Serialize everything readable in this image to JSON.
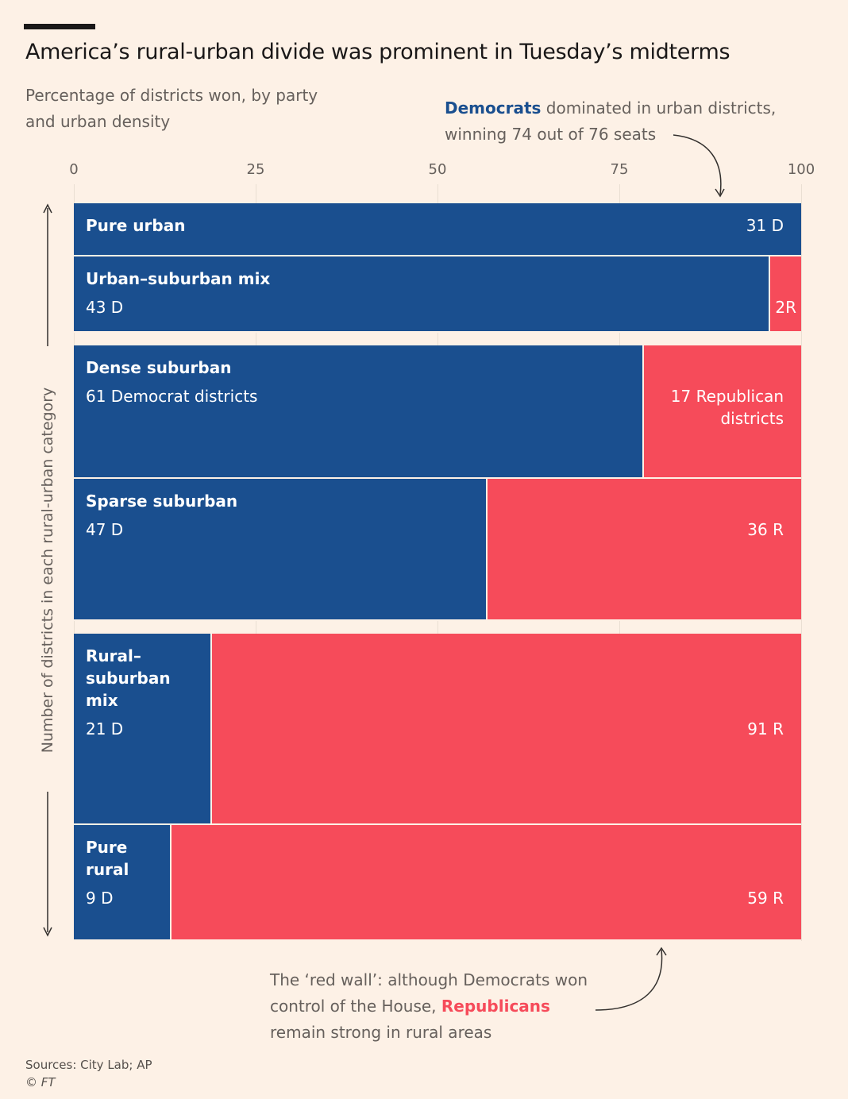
{
  "chart_data": {
    "type": "mekko",
    "title": "America’s rural-urban divide was prominent in Tuesday’s midterms",
    "subtitle": "Percentage of districts won, by party and urban density",
    "y_label": "Number of districts in each rural-urban category",
    "categories": [
      "Pure urban",
      "Urban–suburban mix",
      "Dense suburban",
      "Sparse suburban",
      "Rural–suburban mix",
      "Pure rural"
    ],
    "series": [
      {
        "name": "Democrats",
        "color": "#1a4f8f",
        "values": [
          31,
          43,
          61,
          47,
          21,
          9
        ],
        "value_labels": [
          "31 D",
          "43 D",
          "61 Democrat districts",
          "47 D",
          "21 D",
          "9 D"
        ]
      },
      {
        "name": "Republicans",
        "color": "#f64b5a",
        "values": [
          0,
          2,
          17,
          36,
          91,
          59
        ],
        "value_labels": [
          null,
          "2R",
          "17 Republican districts",
          "36 R",
          "91 R",
          "59 R"
        ]
      }
    ],
    "xlim": [
      0,
      100
    ],
    "xticks": [
      0,
      25,
      50,
      75,
      100
    ],
    "grid": true,
    "annotations": [
      {
        "highlight": "Democrats",
        "text": "dominated in urban districts, winning 74 out of 76 seats"
      },
      {
        "text_1": "The ‘red wall’: although Democrats won control of the House,",
        "highlight": "Republicans",
        "text_2": "remain strong in rural areas"
      }
    ],
    "source": "Sources: City Lab; AP",
    "credit": "© FT"
  }
}
